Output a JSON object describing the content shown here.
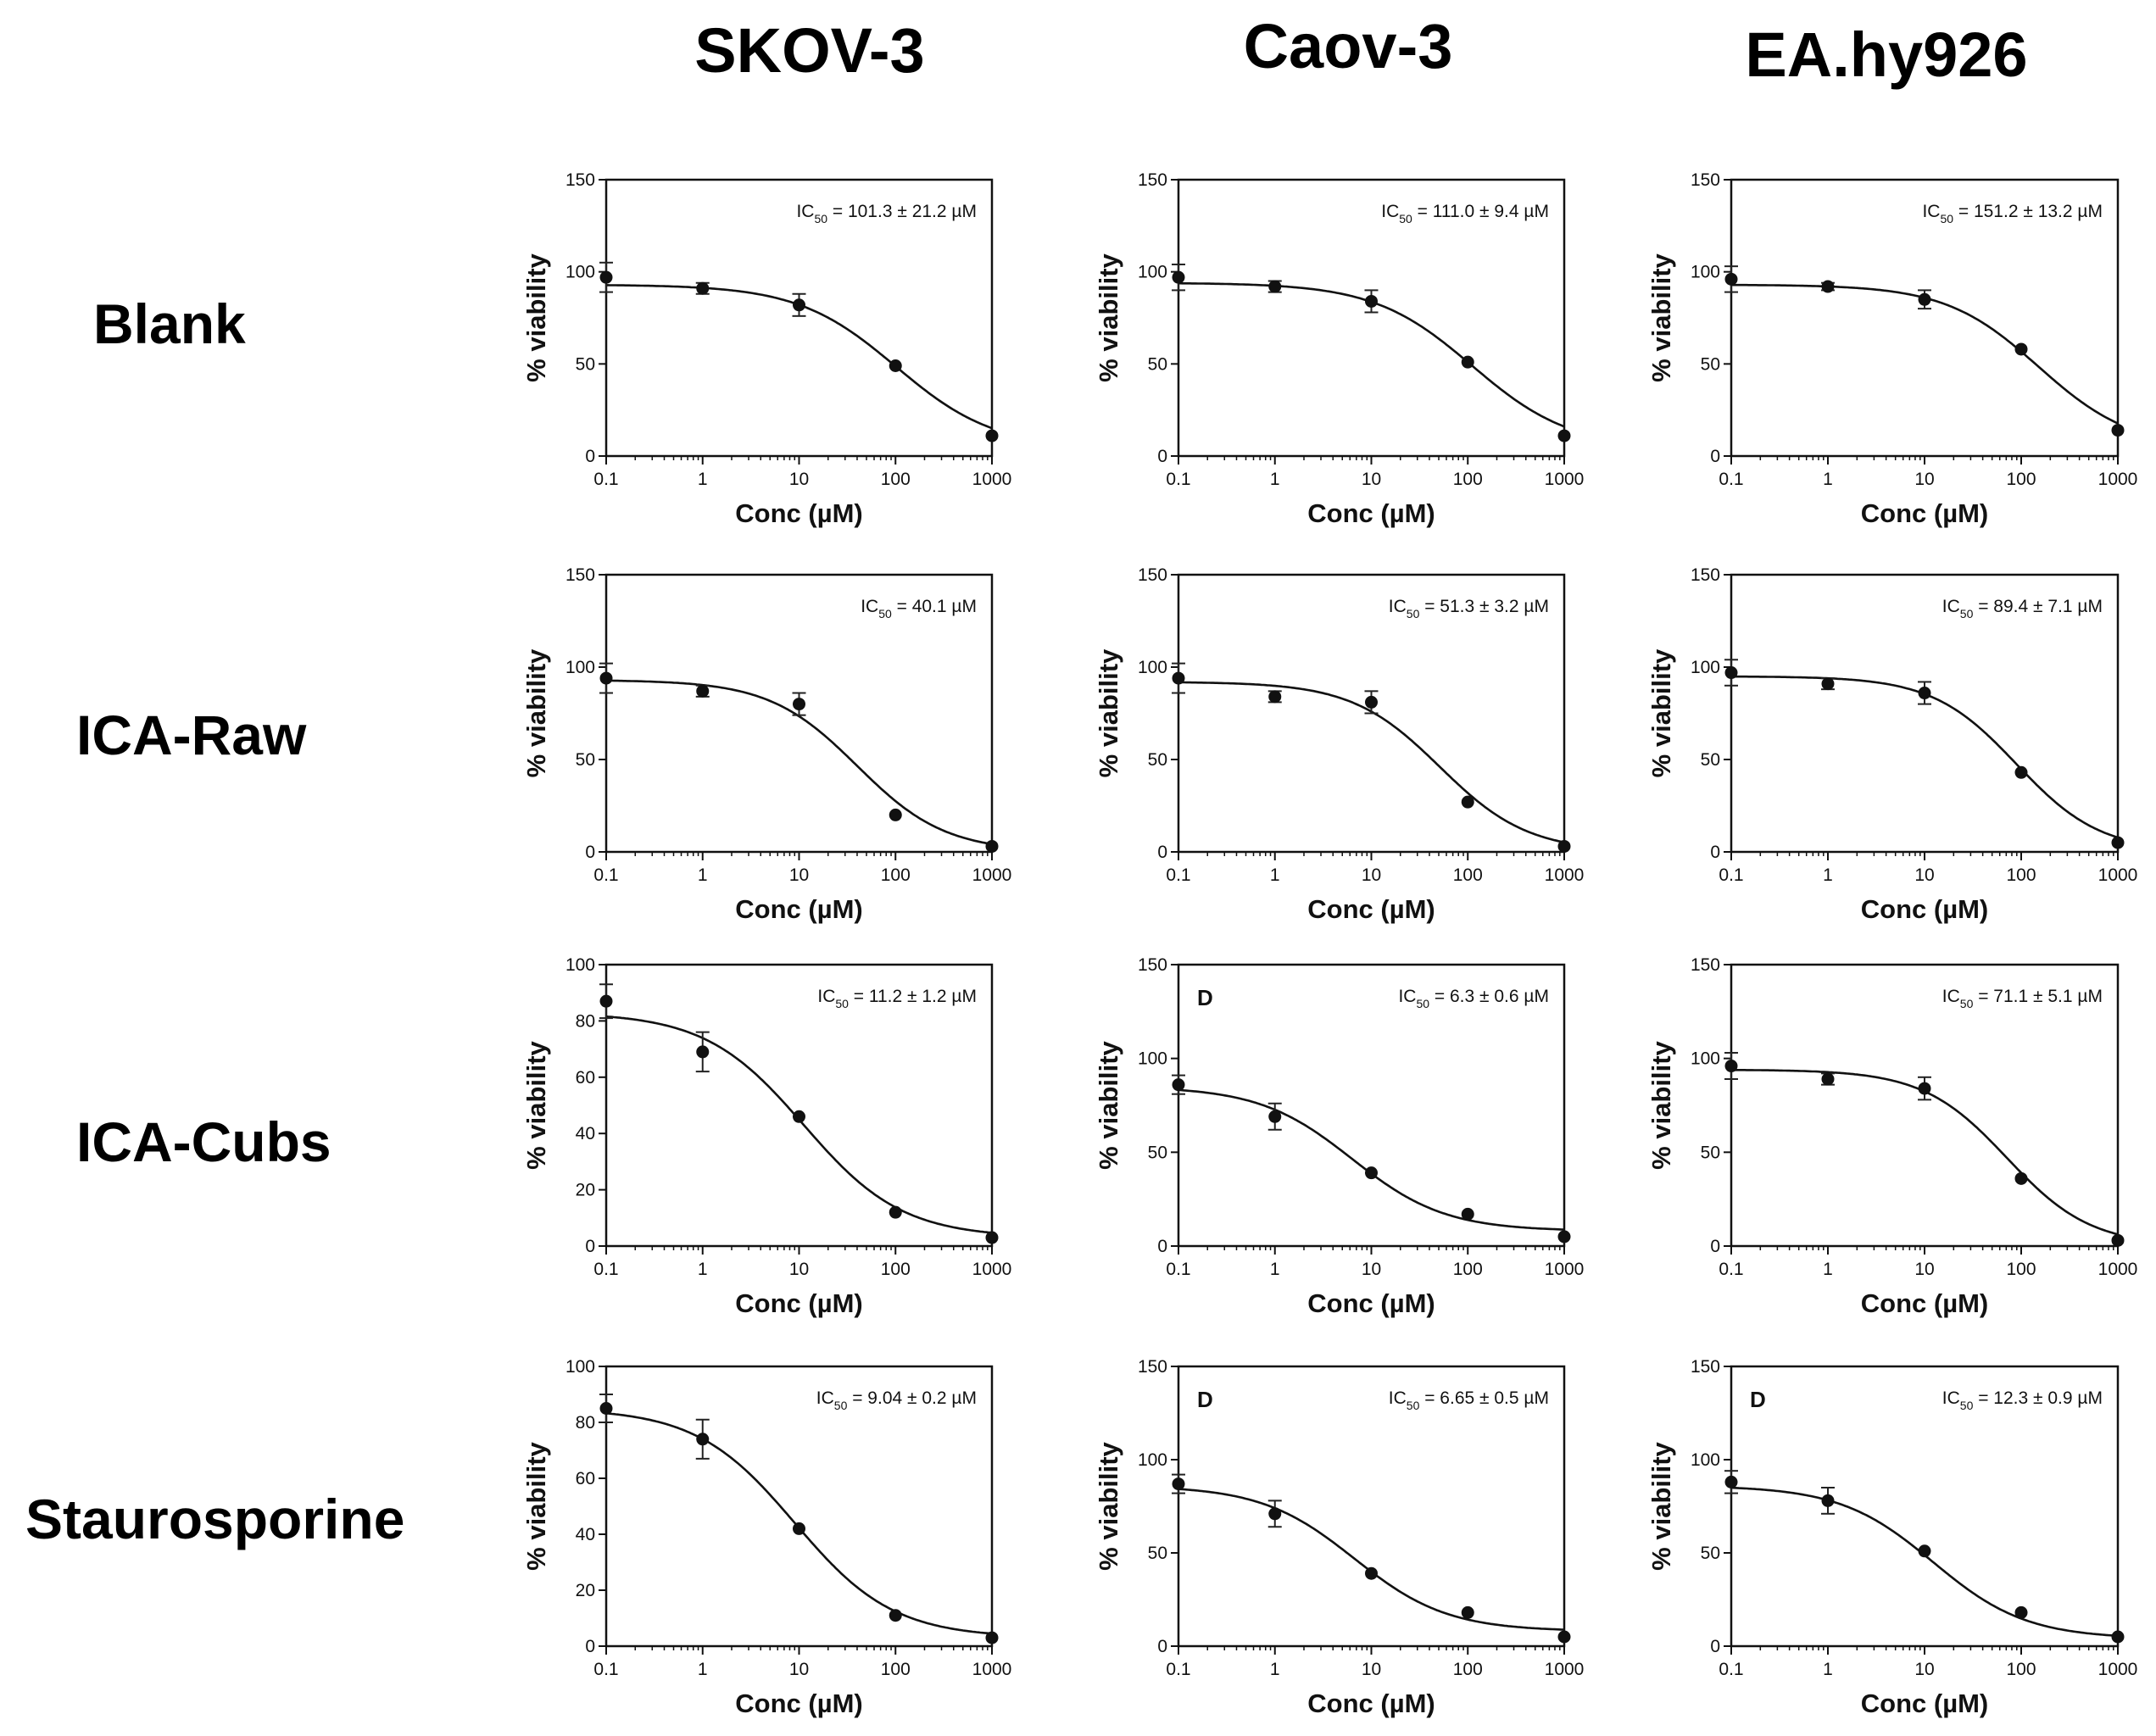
{
  "columns": [
    "SKOV-3",
    "Caov-3",
    "EA.hy926"
  ],
  "rows": [
    "Blank",
    "ICA-Raw",
    "ICA-Cubs",
    "Staurosporine"
  ],
  "chart_data": [
    {
      "type": "line",
      "row": "Blank",
      "column": "SKOV-3",
      "xlabel": "Conc (µM)",
      "ylabel": "% viability",
      "xscale": "log",
      "xlim": [
        0.1,
        1000
      ],
      "ylim": [
        0,
        150
      ],
      "yticks": [
        0,
        50,
        100,
        150
      ],
      "xticks": [
        "0.1",
        "1",
        "10",
        "100",
        "1000"
      ],
      "ic50_label": [
        "IC",
        "50",
        " = 101.3 ± 21.2  µM"
      ],
      "panel_letter": "",
      "x": [
        0.1,
        1,
        10,
        100,
        1000
      ],
      "y": [
        97,
        91,
        82,
        49,
        11
      ],
      "err": [
        8,
        3,
        6,
        0,
        0
      ],
      "fit": {
        "top": 93,
        "bottom": 4,
        "ic50": 101.3,
        "hill": 0.85
      }
    },
    {
      "type": "line",
      "row": "Blank",
      "column": "Caov-3",
      "xlabel": "Conc (µM)",
      "ylabel": "% viability",
      "xscale": "log",
      "xlim": [
        0.1,
        1000
      ],
      "ylim": [
        0,
        150
      ],
      "yticks": [
        0,
        50,
        100,
        150
      ],
      "xticks": [
        "0.1",
        "1",
        "10",
        "100",
        "1000"
      ],
      "ic50_label": [
        "IC",
        "50",
        " = 111.0 ± 9.4 µM"
      ],
      "panel_letter": "",
      "x": [
        0.1,
        1,
        10,
        100,
        1000
      ],
      "y": [
        97,
        92,
        84,
        51,
        11
      ],
      "err": [
        7,
        3,
        6,
        0,
        0
      ],
      "fit": {
        "top": 94,
        "bottom": 4,
        "ic50": 111.0,
        "hill": 0.85
      }
    },
    {
      "type": "line",
      "row": "Blank",
      "column": "EA.hy926",
      "xlabel": "Conc (µM)",
      "ylabel": "% viability",
      "xscale": "log",
      "xlim": [
        0.1,
        1000
      ],
      "ylim": [
        0,
        150
      ],
      "yticks": [
        0,
        50,
        100,
        150
      ],
      "xticks": [
        "0.1",
        "1",
        "10",
        "100",
        "1000"
      ],
      "ic50_label": [
        "IC",
        "50",
        " = 151.2 ± 13.2  µM"
      ],
      "panel_letter": "",
      "x": [
        0.1,
        1,
        10,
        100,
        1000
      ],
      "y": [
        96,
        92,
        85,
        58,
        14
      ],
      "err": [
        7,
        2,
        5,
        0,
        0
      ],
      "fit": {
        "top": 93,
        "bottom": 4,
        "ic50": 151.2,
        "hill": 0.9
      }
    },
    {
      "type": "line",
      "row": "ICA-Raw",
      "column": "SKOV-3",
      "xlabel": "Conc (µM)",
      "ylabel": "% viability",
      "xscale": "log",
      "xlim": [
        0.1,
        1000
      ],
      "ylim": [
        0,
        150
      ],
      "yticks": [
        0,
        50,
        100,
        150
      ],
      "xticks": [
        "0.1",
        "1",
        "10",
        "100",
        "1000"
      ],
      "ic50_label": [
        "IC",
        "50",
        " = 40.1 µM"
      ],
      "panel_letter": "",
      "x": [
        0.1,
        1,
        10,
        100,
        1000
      ],
      "y": [
        94,
        87,
        80,
        20,
        3
      ],
      "err": [
        8,
        3,
        6,
        0,
        0
      ],
      "fit": {
        "top": 93,
        "bottom": 0,
        "ic50": 40.1,
        "hill": 0.95
      }
    },
    {
      "type": "line",
      "row": "ICA-Raw",
      "column": "Caov-3",
      "xlabel": "Conc (µM)",
      "ylabel": "% viability",
      "xscale": "log",
      "xlim": [
        0.1,
        1000
      ],
      "ylim": [
        0,
        150
      ],
      "yticks": [
        0,
        50,
        100,
        150
      ],
      "xticks": [
        "0.1",
        "1",
        "10",
        "100",
        "1000"
      ],
      "ic50_label": [
        "IC",
        "50",
        " = 51.3 ± 3.2 µM"
      ],
      "panel_letter": "",
      "x": [
        0.1,
        1,
        10,
        100,
        1000
      ],
      "y": [
        94,
        84,
        81,
        27,
        3
      ],
      "err": [
        8,
        3,
        6,
        0,
        0
      ],
      "fit": {
        "top": 92,
        "bottom": 0,
        "ic50": 51.3,
        "hill": 0.95
      }
    },
    {
      "type": "line",
      "row": "ICA-Raw",
      "column": "EA.hy926",
      "xlabel": "Conc (µM)",
      "ylabel": "% viability",
      "xscale": "log",
      "xlim": [
        0.1,
        1000
      ],
      "ylim": [
        0,
        150
      ],
      "yticks": [
        0,
        50,
        100,
        150
      ],
      "xticks": [
        "0.1",
        "1",
        "10",
        "100",
        "1000"
      ],
      "ic50_label": [
        "IC",
        "50",
        " = 89.4 ± 7.1 µM"
      ],
      "panel_letter": "",
      "x": [
        0.1,
        1,
        10,
        100,
        1000
      ],
      "y": [
        97,
        91,
        86,
        43,
        5
      ],
      "err": [
        7,
        3,
        6,
        0,
        0
      ],
      "fit": {
        "top": 95,
        "bottom": 0,
        "ic50": 89.4,
        "hill": 1.0
      }
    },
    {
      "type": "line",
      "row": "ICA-Cubs",
      "column": "SKOV-3",
      "xlabel": "Conc (µM)",
      "ylabel": "% viability",
      "xscale": "log",
      "xlim": [
        0.1,
        1000
      ],
      "ylim": [
        0,
        100
      ],
      "yticks": [
        0,
        20,
        40,
        60,
        80,
        100
      ],
      "xticks": [
        "0.1",
        "1",
        "10",
        "100",
        "1000"
      ],
      "ic50_label": [
        "IC",
        "50",
        " = 11.2 ± 1.2 µM"
      ],
      "panel_letter": "",
      "x": [
        0.1,
        1,
        10,
        100,
        1000
      ],
      "y": [
        87,
        69,
        46,
        12,
        3
      ],
      "err": [
        6,
        7,
        0,
        0,
        0
      ],
      "fit": {
        "top": 83,
        "bottom": 3,
        "ic50": 11.2,
        "hill": 0.85
      }
    },
    {
      "type": "line",
      "row": "ICA-Cubs",
      "column": "Caov-3",
      "xlabel": "Conc (µM)",
      "ylabel": "% viability",
      "xscale": "log",
      "xlim": [
        0.1,
        1000
      ],
      "ylim": [
        0,
        150
      ],
      "yticks": [
        0,
        50,
        100,
        150
      ],
      "xticks": [
        "0.1",
        "1",
        "10",
        "100",
        "1000"
      ],
      "ic50_label": [
        "IC",
        "50",
        " = 6.3 ± 0.6 µM"
      ],
      "panel_letter": "D",
      "x": [
        0.1,
        1,
        10,
        100,
        1000
      ],
      "y": [
        86,
        69,
        39,
        17,
        5
      ],
      "err": [
        5,
        7,
        0,
        0,
        0
      ],
      "fit": {
        "top": 85,
        "bottom": 8,
        "ic50": 6.3,
        "hill": 0.9
      }
    },
    {
      "type": "line",
      "row": "ICA-Cubs",
      "column": "EA.hy926",
      "xlabel": "Conc (µM)",
      "ylabel": "% viability",
      "xscale": "log",
      "xlim": [
        0.1,
        1000
      ],
      "ylim": [
        0,
        150
      ],
      "yticks": [
        0,
        50,
        100,
        150
      ],
      "xticks": [
        "0.1",
        "1",
        "10",
        "100",
        "1000"
      ],
      "ic50_label": [
        "IC",
        "50",
        " = 71.1 ± 5.1 µM"
      ],
      "panel_letter": "",
      "x": [
        0.1,
        1,
        10,
        100,
        1000
      ],
      "y": [
        96,
        89,
        84,
        36,
        3
      ],
      "err": [
        7,
        3,
        6,
        0,
        0
      ],
      "fit": {
        "top": 94,
        "bottom": 0,
        "ic50": 71.1,
        "hill": 1.0
      }
    },
    {
      "type": "line",
      "row": "Staurosporine",
      "column": "SKOV-3",
      "xlabel": "Conc (µM)",
      "ylabel": "% viability",
      "xscale": "log",
      "xlim": [
        0.1,
        1000
      ],
      "ylim": [
        0,
        100
      ],
      "yticks": [
        0,
        20,
        40,
        60,
        80,
        100
      ],
      "xticks": [
        "0.1",
        "1",
        "10",
        "100",
        "1000"
      ],
      "ic50_label": [
        "IC",
        "50",
        " = 9.04 ± 0.2 µM"
      ],
      "panel_letter": "",
      "x": [
        0.1,
        1,
        10,
        100,
        1000
      ],
      "y": [
        85,
        74,
        42,
        11,
        3
      ],
      "err": [
        5,
        7,
        0,
        0,
        0
      ],
      "fit": {
        "top": 85,
        "bottom": 3,
        "ic50": 9.04,
        "hill": 0.85
      }
    },
    {
      "type": "line",
      "row": "Staurosporine",
      "column": "Caov-3",
      "xlabel": "Conc (µM)",
      "ylabel": "% viability",
      "xscale": "log",
      "xlim": [
        0.1,
        1000
      ],
      "ylim": [
        0,
        150
      ],
      "yticks": [
        0,
        50,
        100,
        150
      ],
      "xticks": [
        "0.1",
        "1",
        "10",
        "100",
        "1000"
      ],
      "ic50_label": [
        "IC",
        "50",
        " = 6.65 ± 0.5 µM"
      ],
      "panel_letter": "D",
      "x": [
        0.1,
        1,
        10,
        100,
        1000
      ],
      "y": [
        87,
        71,
        39,
        18,
        5
      ],
      "err": [
        5,
        7,
        0,
        0,
        0
      ],
      "fit": {
        "top": 86,
        "bottom": 8,
        "ic50": 6.65,
        "hill": 0.9
      }
    },
    {
      "type": "line",
      "row": "Staurosporine",
      "column": "EA.hy926",
      "xlabel": "Conc (µM)",
      "ylabel": "% viability",
      "xscale": "log",
      "xlim": [
        0.1,
        1000
      ],
      "ylim": [
        0,
        150
      ],
      "yticks": [
        0,
        50,
        100,
        150
      ],
      "xticks": [
        "0.1",
        "1",
        "10",
        "100",
        "1000"
      ],
      "ic50_label": [
        "IC",
        "50",
        " = 12.3 ± 0.9 µM"
      ],
      "panel_letter": "D",
      "x": [
        0.1,
        1,
        10,
        100,
        1000
      ],
      "y": [
        88,
        78,
        51,
        18,
        5
      ],
      "err": [
        6,
        7,
        0,
        0,
        0
      ],
      "fit": {
        "top": 86,
        "bottom": 4,
        "ic50": 12.3,
        "hill": 0.9
      }
    }
  ]
}
